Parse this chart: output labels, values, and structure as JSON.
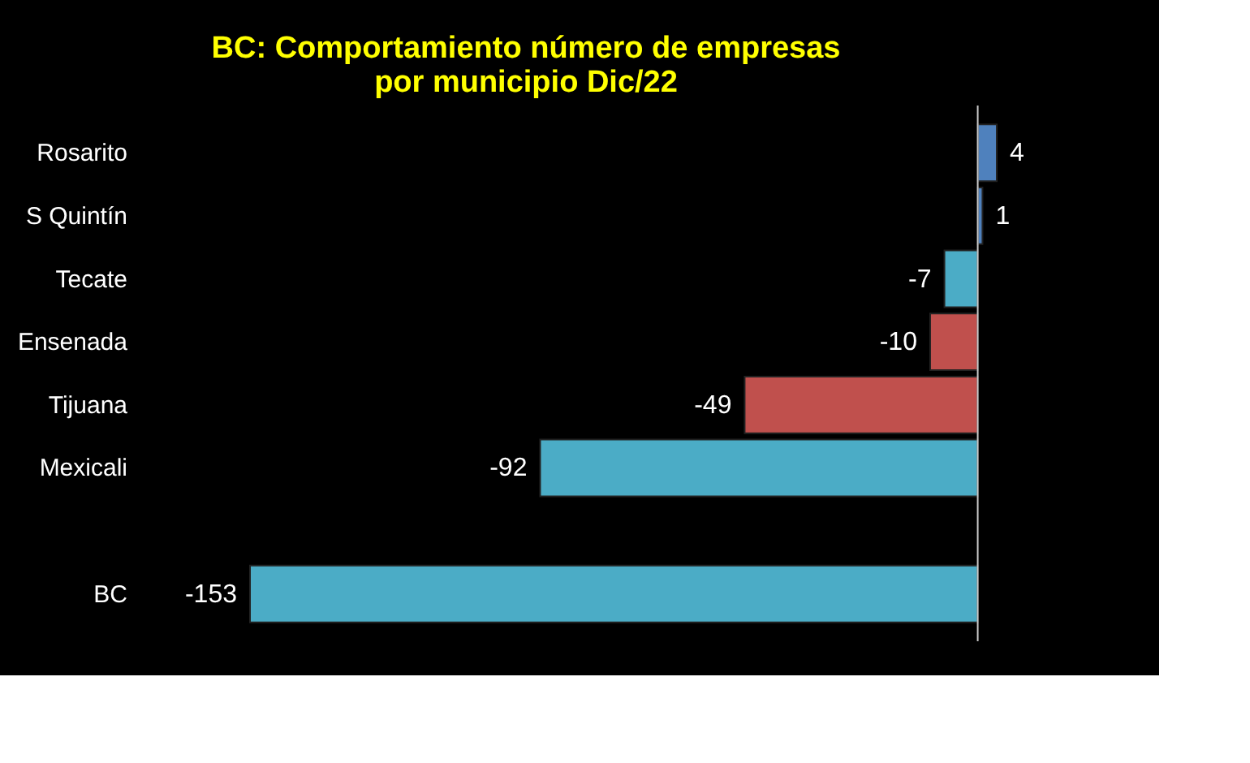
{
  "chart_data": {
    "type": "bar",
    "orientation": "horizontal",
    "title": "BC: Comportamiento número de empresas\npor municipio Dic/22",
    "categories": [
      "Rosarito",
      "S Quintín",
      "Tecate",
      "Ensenada",
      "Tijuana",
      "Mexicali",
      null,
      "BC"
    ],
    "values": [
      4,
      1,
      -7,
      -10,
      -49,
      -92,
      null,
      -153
    ],
    "colors": [
      "#4f81bd",
      "#4f81bd",
      "#4bacc6",
      "#c0504d",
      "#c0504d",
      "#4bacc6",
      "#4bacc6",
      "#4bacc6"
    ],
    "data_labels": true,
    "tick_labels": "y"
  }
}
